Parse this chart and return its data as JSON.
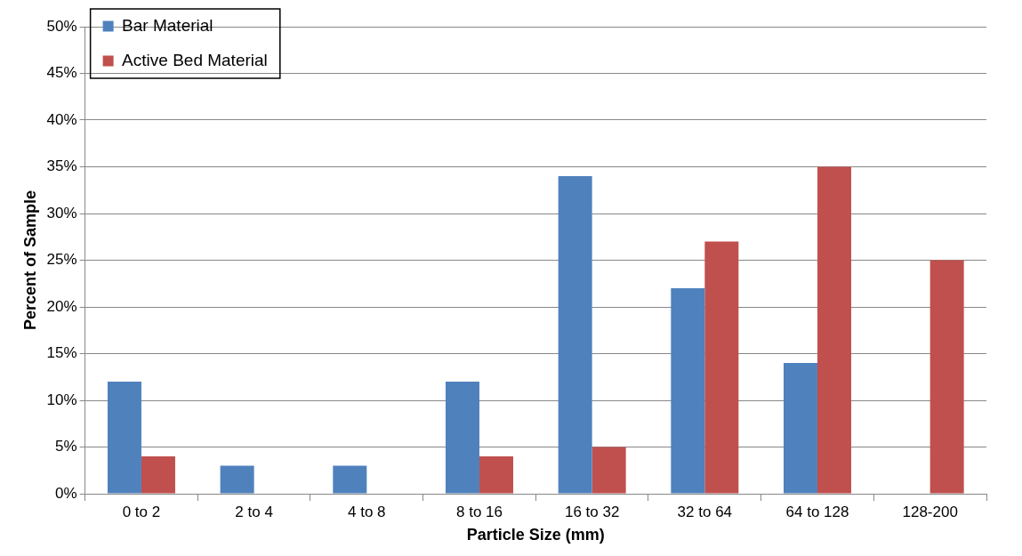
{
  "chart_data": {
    "type": "bar",
    "xlabel": "Particle Size (mm)",
    "ylabel": "Percent of Sample",
    "categories": [
      "0 to 2",
      "2 to 4",
      "4 to 8",
      "8 to 16",
      "16 to 32",
      "32 to 64",
      "64 to 128",
      "128-200"
    ],
    "series": [
      {
        "name": "Bar Material",
        "color": "#4f81bd",
        "values": [
          12,
          3,
          3,
          12,
          34,
          22,
          14,
          0
        ]
      },
      {
        "name": "Active Bed Material",
        "color": "#c0504d",
        "values": [
          4,
          0,
          0,
          4,
          5,
          27,
          35,
          25
        ]
      }
    ],
    "ylim": [
      0,
      50
    ],
    "yticks": [
      {
        "value": 0,
        "label": "0%"
      },
      {
        "value": 5,
        "label": "5%"
      },
      {
        "value": 10,
        "label": "10%"
      },
      {
        "value": 15,
        "label": "15%"
      },
      {
        "value": 20,
        "label": "20%"
      },
      {
        "value": 25,
        "label": "25%"
      },
      {
        "value": 30,
        "label": "30%"
      },
      {
        "value": 35,
        "label": "35%"
      },
      {
        "value": 40,
        "label": "40%"
      },
      {
        "value": 45,
        "label": "45%"
      },
      {
        "value": 50,
        "label": "50%"
      }
    ],
    "grid": "y",
    "legend": "top left"
  }
}
